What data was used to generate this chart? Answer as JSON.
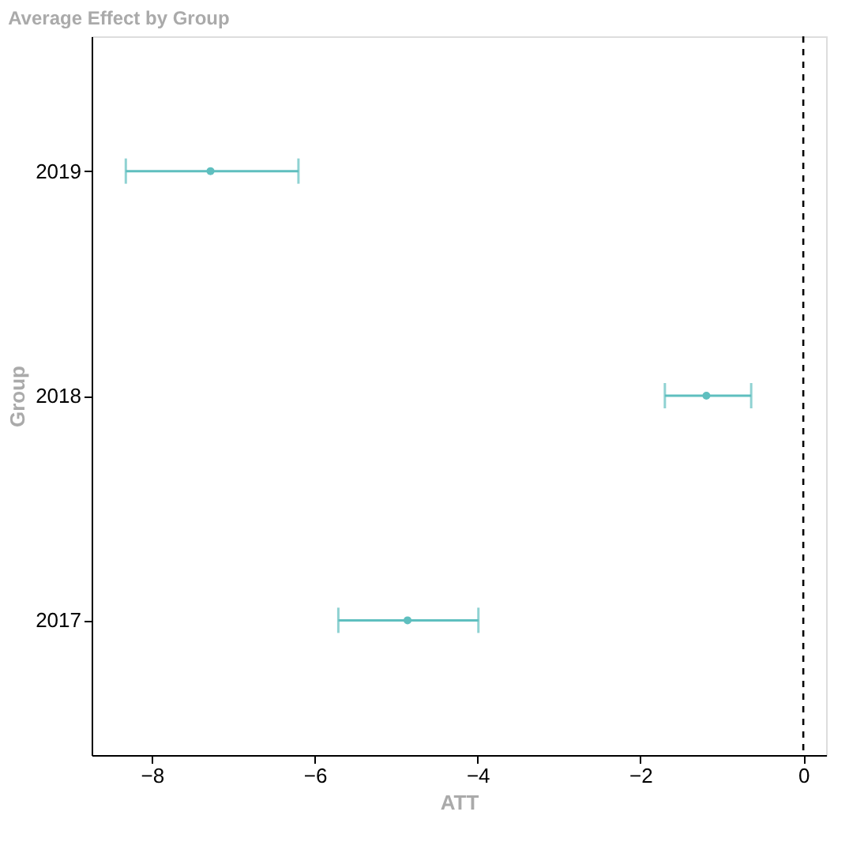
{
  "chart_data": {
    "type": "scatter",
    "orientation": "horizontal",
    "title": "Average Effect by Group",
    "xlabel": "ATT",
    "ylabel": "Group",
    "categories": [
      "2019",
      "2018",
      "2017"
    ],
    "series": [
      {
        "color": "#5fbfbf",
        "values": [
          -7.28,
          -1.19,
          -4.86
        ],
        "errors": [
          [
            -8.32,
            -6.2
          ],
          [
            -1.7,
            -0.64
          ],
          [
            -5.71,
            -3.99
          ]
        ]
      }
    ],
    "xlim": [
      -8.74,
      0.28
    ],
    "xticks": [
      -8,
      -6,
      -4,
      -2,
      0
    ],
    "ref_lines": [
      {
        "axis": "x",
        "value": 0,
        "color": "#000000",
        "line_style": "dashed"
      }
    ],
    "grid": false,
    "marker": "circle"
  }
}
